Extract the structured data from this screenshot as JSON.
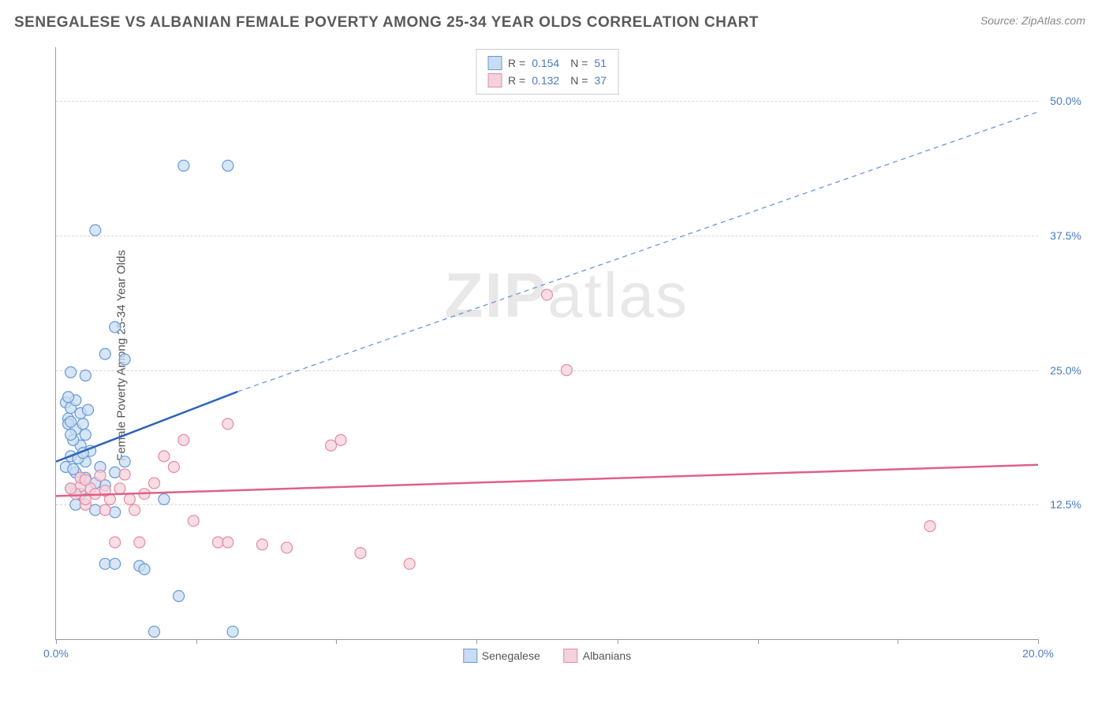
{
  "title": "SENEGALESE VS ALBANIAN FEMALE POVERTY AMONG 25-34 YEAR OLDS CORRELATION CHART",
  "source": "Source: ZipAtlas.com",
  "y_axis_label": "Female Poverty Among 25-34 Year Olds",
  "watermark_bold": "ZIP",
  "watermark_rest": "atlas",
  "chart": {
    "type": "scatter",
    "xlim": [
      0,
      20
    ],
    "ylim": [
      0,
      55
    ],
    "x_ticks": [
      0,
      2.86,
      5.71,
      8.57,
      11.43,
      14.29,
      17.14,
      20
    ],
    "x_tick_labels": {
      "0": "0.0%",
      "20": "20.0%"
    },
    "y_grid": [
      12.5,
      25.0,
      37.5,
      50.0
    ],
    "y_tick_labels": [
      "12.5%",
      "25.0%",
      "37.5%",
      "50.0%"
    ],
    "background_color": "#ffffff",
    "grid_color": "#d8d8d8",
    "axis_color": "#999999",
    "series": [
      {
        "name": "Senegalese",
        "marker_fill": "#c9dcf2",
        "marker_stroke": "#6699d8",
        "marker_opacity": 0.75,
        "marker_radius": 7,
        "R": "0.154",
        "N": "51",
        "trend": {
          "solid": {
            "x1": 0,
            "y1": 16.5,
            "x2": 3.7,
            "y2": 23.0,
            "color": "#2f63b8",
            "width": 2.5
          },
          "dashed": {
            "x1": 3.7,
            "y1": 23.0,
            "x2": 20,
            "y2": 49.0,
            "color": "#6699d8",
            "width": 1.3,
            "dash": "6,5"
          }
        },
        "points": [
          [
            0.2,
            22.0
          ],
          [
            0.25,
            20.5
          ],
          [
            0.3,
            21.5
          ],
          [
            0.25,
            20.0
          ],
          [
            0.4,
            19.5
          ],
          [
            0.5,
            18.0
          ],
          [
            0.3,
            17.0
          ],
          [
            0.6,
            16.5
          ],
          [
            0.4,
            15.5
          ],
          [
            0.8,
            38.0
          ],
          [
            1.2,
            29.0
          ],
          [
            0.3,
            24.8
          ],
          [
            0.6,
            24.5
          ],
          [
            1.0,
            14.3
          ],
          [
            0.8,
            12.0
          ],
          [
            1.4,
            16.5
          ],
          [
            1.2,
            15.5
          ],
          [
            2.6,
            44.0
          ],
          [
            3.5,
            44.0
          ],
          [
            1.0,
            26.5
          ],
          [
            1.4,
            26.0
          ],
          [
            1.7,
            6.8
          ],
          [
            1.8,
            6.5
          ],
          [
            1.2,
            11.8
          ],
          [
            1.0,
            7.0
          ],
          [
            1.2,
            7.0
          ],
          [
            2.2,
            13.0
          ],
          [
            2.5,
            4.0
          ],
          [
            2.0,
            0.7
          ],
          [
            3.6,
            0.7
          ],
          [
            0.3,
            14.0
          ],
          [
            0.5,
            13.5
          ],
          [
            0.8,
            14.5
          ],
          [
            0.4,
            12.5
          ],
          [
            0.5,
            15.0
          ],
          [
            0.2,
            16.0
          ],
          [
            0.6,
            19.0
          ],
          [
            0.35,
            18.5
          ],
          [
            0.5,
            21.0
          ],
          [
            0.4,
            22.2
          ],
          [
            0.25,
            22.5
          ],
          [
            0.55,
            20.0
          ],
          [
            0.3,
            19.0
          ],
          [
            0.7,
            17.5
          ],
          [
            0.9,
            16.0
          ],
          [
            0.6,
            15.0
          ],
          [
            0.45,
            16.8
          ],
          [
            0.35,
            15.8
          ],
          [
            0.55,
            17.3
          ],
          [
            0.3,
            20.2
          ],
          [
            0.65,
            21.3
          ]
        ]
      },
      {
        "name": "Albanians",
        "marker_fill": "#f4d2db",
        "marker_stroke": "#e68aa5",
        "marker_opacity": 0.75,
        "marker_radius": 7,
        "R": "0.132",
        "N": "37",
        "trend": {
          "solid": {
            "x1": 0,
            "y1": 13.3,
            "x2": 20,
            "y2": 16.2,
            "color": "#e06088",
            "width": 2.5
          }
        },
        "points": [
          [
            10.0,
            32.0
          ],
          [
            10.4,
            25.0
          ],
          [
            17.8,
            10.5
          ],
          [
            7.2,
            7.0
          ],
          [
            5.6,
            18.0
          ],
          [
            5.8,
            18.5
          ],
          [
            6.2,
            8.0
          ],
          [
            4.7,
            8.5
          ],
          [
            4.2,
            8.8
          ],
          [
            3.3,
            9.0
          ],
          [
            3.5,
            9.0
          ],
          [
            2.8,
            11.0
          ],
          [
            3.5,
            20.0
          ],
          [
            2.6,
            18.5
          ],
          [
            2.4,
            16.0
          ],
          [
            2.2,
            17.0
          ],
          [
            1.7,
            9.0
          ],
          [
            2.0,
            14.5
          ],
          [
            1.5,
            13.0
          ],
          [
            1.2,
            9.0
          ],
          [
            1.6,
            12.0
          ],
          [
            1.3,
            14.0
          ],
          [
            1.0,
            12.0
          ],
          [
            0.6,
            12.5
          ],
          [
            0.9,
            15.2
          ],
          [
            0.7,
            14.0
          ],
          [
            0.6,
            13.0
          ],
          [
            0.5,
            14.2
          ],
          [
            0.4,
            13.5
          ],
          [
            0.8,
            13.5
          ],
          [
            1.1,
            13.0
          ],
          [
            0.5,
            15.0
          ],
          [
            0.3,
            14.0
          ],
          [
            0.6,
            14.8
          ],
          [
            1.0,
            13.8
          ],
          [
            1.8,
            13.5
          ],
          [
            1.4,
            15.3
          ]
        ]
      }
    ]
  },
  "legend_bottom": [
    {
      "label": "Senegalese",
      "swatch": "blue"
    },
    {
      "label": "Albanians",
      "swatch": "pink"
    }
  ]
}
